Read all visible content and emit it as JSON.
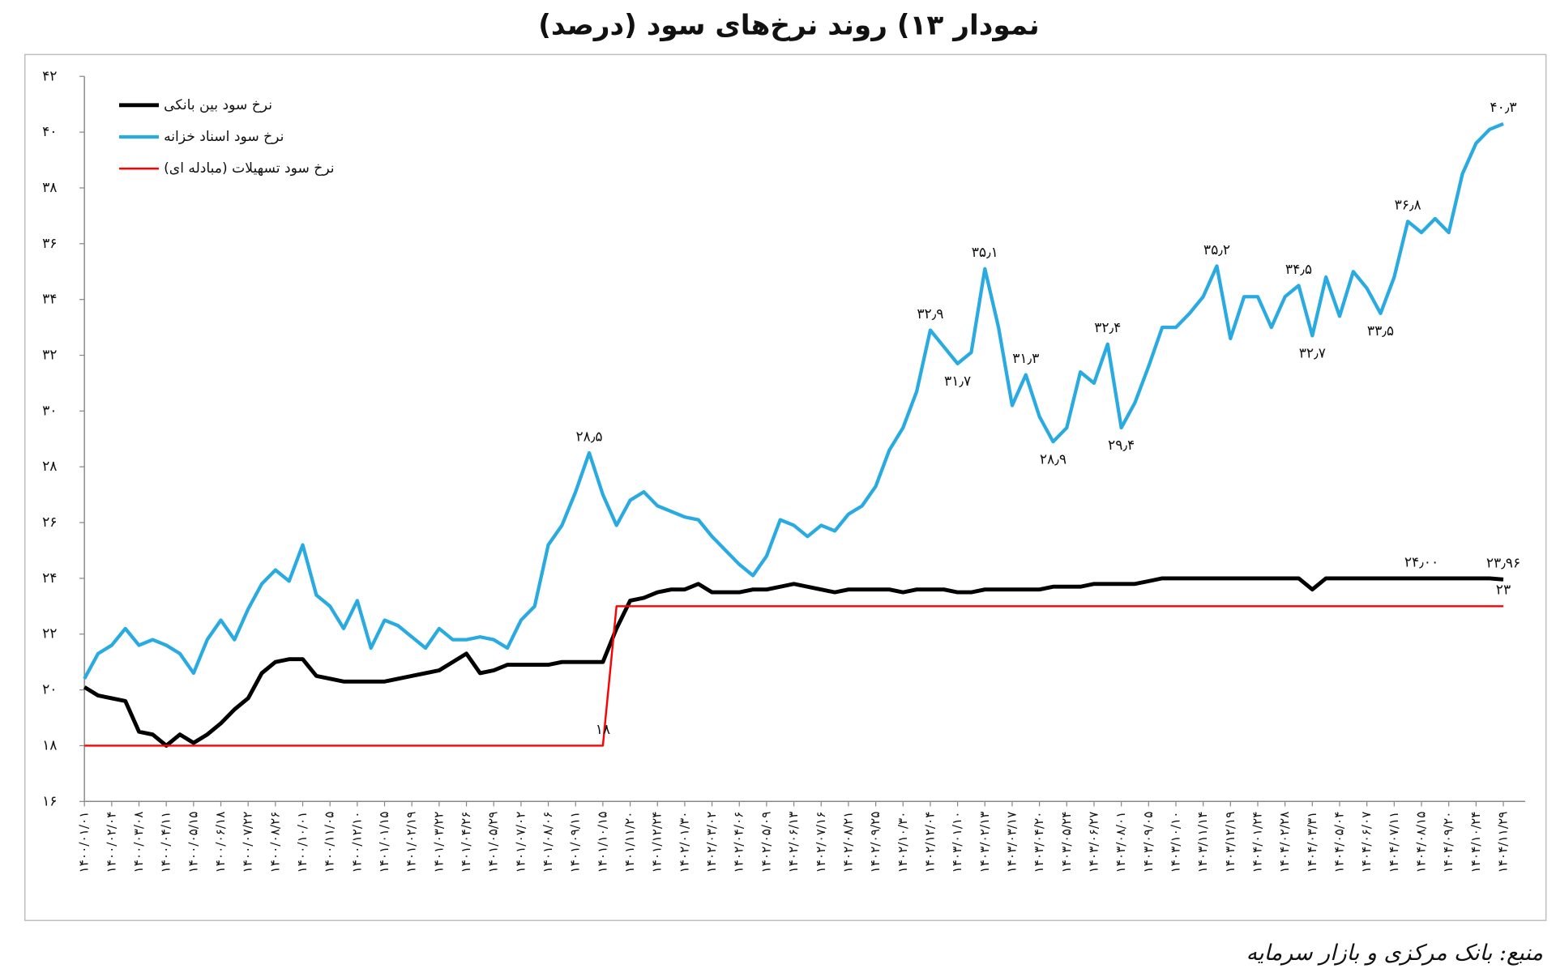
{
  "chart_data": {
    "type": "line",
    "title": "نمودار ۱۳) روند نرخ‌های سود (درصد)",
    "source": "منبع: بانک مرکزی و بازار سرمایه",
    "legend": "top-left",
    "grid": false,
    "ylim": [
      16,
      42
    ],
    "yticks": [
      {
        "value": 16,
        "label": "۱۶"
      },
      {
        "value": 18,
        "label": "۱۸"
      },
      {
        "value": 20,
        "label": "۲۰"
      },
      {
        "value": 22,
        "label": "۲۲"
      },
      {
        "value": 24,
        "label": "۲۴"
      },
      {
        "value": 26,
        "label": "۲۶"
      },
      {
        "value": 28,
        "label": "۲۸"
      },
      {
        "value": 30,
        "label": "۳۰"
      },
      {
        "value": 32,
        "label": "۳۲"
      },
      {
        "value": 34,
        "label": "۳۴"
      },
      {
        "value": 36,
        "label": "۳۶"
      },
      {
        "value": 38,
        "label": "۳۸"
      },
      {
        "value": 40,
        "label": "۴۰"
      },
      {
        "value": 42,
        "label": "۴۲"
      }
    ],
    "categories": [
      "۱۴۰۰/۰۱/۰۱",
      null,
      "۱۴۰۰/۰۲/۰۴",
      null,
      "۱۴۰۰/۰۳/۰۸",
      null,
      "۱۴۰۰/۰۴/۱۱",
      null,
      "۱۴۰۰/۰۵/۱۵",
      null,
      "۱۴۰۰/۰۶/۱۸",
      null,
      "۱۴۰۰/۰۷/۲۲",
      null,
      "۱۴۰۰/۰۸/۲۶",
      null,
      "۱۴۰۰/۱۰/۰۱",
      null,
      "۱۴۰۰/۱۱/۰۵",
      null,
      "۱۴۰۰/۱۲/۱۰",
      null,
      "۱۴۰۱/۰۱/۱۵",
      null,
      "۱۴۰۱/۰۲/۱۹",
      null,
      "۱۴۰۱/۰۳/۲۲",
      null,
      "۱۴۰۱/۰۴/۲۶",
      null,
      "۱۴۰۱/۰۵/۲۹",
      null,
      "۱۴۰۱/۰۷/۰۲",
      null,
      "۱۴۰۱/۰۸/۰۶",
      null,
      "۱۴۰۱/۰۹/۱۱",
      null,
      "۱۴۰۱/۱۰/۱۵",
      null,
      "۱۴۰۱/۱۱/۲۰",
      null,
      "۱۴۰۱/۱۲/۲۴",
      null,
      "۱۴۰۲/۰۱/۳۰",
      null,
      "۱۴۰۲/۰۳/۰۲",
      null,
      "۱۴۰۲/۰۴/۰۶",
      null,
      "۱۴۰۲/۰۵/۰۹",
      null,
      "۱۴۰۲/۰۶/۱۳",
      null,
      "۱۴۰۲/۰۷/۱۶",
      null,
      "۱۴۰۲/۰۸/۲۱",
      null,
      "۱۴۰۲/۰۹/۲۵",
      null,
      "۱۴۰۲/۱۰/۳۰",
      null,
      "۱۴۰۲/۱۲/۰۴",
      null,
      "۱۴۰۳/۰۱/۱۰",
      null,
      "۱۴۰۳/۰۲/۱۳",
      null,
      "۱۴۰۳/۰۳/۱۷",
      null,
      "۱۴۰۳/۰۴/۲۰",
      null,
      "۱۴۰۳/۰۵/۲۴",
      null,
      "۱۴۰۳/۰۶/۲۷",
      null,
      "۱۴۰۳/۰۸/۰۱",
      null,
      "۱۴۰۳/۰۹/۰۵",
      null,
      "۱۴۰۳/۱۰/۱۰",
      null,
      "۱۴۰۳/۱۱/۱۴",
      null,
      "۱۴۰۳/۱۲/۱۹",
      null,
      "۱۴۰۴/۰۱/۲۴",
      null,
      "۱۴۰۴/۰۲/۲۸",
      null,
      "۱۴۰۴/۰۳/۳۱",
      null,
      "۱۴۰۴/۰۵/۰۴",
      null,
      "۱۴۰۴/۰۶/۰۷",
      null,
      "۱۴۰۴/۰۷/۱۱",
      null,
      "۱۴۰۴/۰۸/۱۵",
      null,
      "۱۴۰۴/۰۹/۲۰",
      null,
      "۱۴۰۴/۱۰/۲۴",
      null,
      "۱۴۰۴/۱۱/۲۹"
    ],
    "series": [
      {
        "name": "نرخ سود بین بانکی",
        "color": "#000000",
        "values": [
          20.1,
          19.8,
          19.7,
          19.6,
          18.5,
          18.4,
          18.0,
          18.4,
          18.1,
          18.4,
          18.8,
          19.3,
          19.7,
          20.6,
          21.0,
          21.1,
          21.1,
          20.5,
          20.4,
          20.3,
          20.3,
          20.3,
          20.3,
          20.4,
          20.5,
          20.6,
          20.7,
          21.0,
          21.3,
          20.6,
          20.7,
          20.9,
          20.9,
          20.9,
          20.9,
          21.0,
          21.0,
          21.0,
          21.0,
          22.2,
          23.2,
          23.3,
          23.5,
          23.6,
          23.6,
          23.8,
          23.5,
          23.5,
          23.5,
          23.6,
          23.6,
          23.7,
          23.8,
          23.7,
          23.6,
          23.5,
          23.6,
          23.6,
          23.6,
          23.6,
          23.5,
          23.6,
          23.6,
          23.6,
          23.5,
          23.5,
          23.6,
          23.6,
          23.6,
          23.6,
          23.6,
          23.7,
          23.7,
          23.7,
          23.8,
          23.8,
          23.8,
          23.8,
          23.9,
          24.0,
          24.0,
          24.0,
          24.0,
          24.0,
          24.0,
          24.0,
          24.0,
          24.0,
          24.0,
          24.0,
          23.6,
          24.0,
          24.0,
          24.0,
          24.0,
          24.0,
          24.0,
          24.0,
          24.0,
          24.0,
          24.0,
          24.0,
          24.0,
          24.0,
          23.96
        ],
        "value_labels": [
          null,
          null,
          null,
          null,
          null,
          null,
          null,
          null,
          null,
          null,
          null,
          null,
          null,
          null,
          null,
          null,
          null,
          null,
          null,
          null,
          null,
          null,
          null,
          null,
          null,
          null,
          null,
          null,
          null,
          null,
          null,
          null,
          null,
          null,
          null,
          null,
          null,
          null,
          null,
          null,
          null,
          null,
          null,
          null,
          null,
          null,
          null,
          null,
          null,
          null,
          null,
          null,
          null,
          null,
          null,
          null,
          null,
          null,
          null,
          null,
          null,
          null,
          null,
          null,
          null,
          null,
          null,
          null,
          null,
          null,
          null,
          null,
          null,
          null,
          null,
          null,
          null,
          null,
          null,
          null,
          null,
          null,
          null,
          null,
          null,
          null,
          null,
          null,
          null,
          null,
          null,
          null,
          null,
          null,
          null,
          null,
          null,
          null,
          "۲۴٫۰۰",
          null,
          null,
          null,
          null,
          null,
          "۲۳٫۹۶"
        ]
      },
      {
        "name": "نرخ سود اسناد خزانه",
        "color": "#29abe2",
        "values": [
          20.4,
          21.3,
          21.6,
          22.2,
          21.6,
          21.8,
          21.6,
          21.3,
          20.6,
          21.8,
          22.5,
          21.8,
          22.9,
          23.8,
          24.3,
          23.9,
          25.2,
          23.4,
          23.0,
          22.2,
          23.2,
          21.5,
          22.5,
          22.3,
          21.9,
          21.5,
          22.2,
          21.8,
          21.8,
          21.9,
          21.8,
          21.5,
          22.5,
          23.0,
          25.2,
          25.9,
          27.1,
          28.5,
          27.0,
          25.9,
          26.8,
          27.1,
          26.6,
          26.4,
          26.2,
          26.1,
          25.5,
          25.0,
          24.5,
          24.1,
          24.8,
          26.1,
          25.9,
          25.5,
          25.9,
          25.7,
          26.3,
          26.6,
          27.3,
          28.6,
          29.4,
          30.7,
          32.9,
          32.3,
          31.7,
          32.1,
          35.1,
          33.0,
          30.2,
          31.3,
          29.8,
          28.9,
          29.4,
          31.4,
          31.0,
          32.4,
          29.4,
          30.3,
          31.6,
          33.0,
          33.0,
          33.5,
          34.1,
          35.2,
          32.6,
          34.1,
          34.1,
          33.0,
          34.1,
          34.5,
          32.7,
          34.8,
          33.4,
          35.0,
          34.4,
          33.5,
          34.8,
          36.8,
          36.4,
          36.9,
          36.4,
          38.5,
          39.6,
          40.1,
          40.3
        ],
        "value_labels": [
          null,
          null,
          null,
          null,
          null,
          null,
          null,
          null,
          null,
          null,
          null,
          null,
          null,
          null,
          null,
          null,
          null,
          null,
          null,
          null,
          null,
          null,
          null,
          null,
          null,
          null,
          null,
          null,
          null,
          null,
          null,
          null,
          null,
          null,
          null,
          null,
          null,
          "۲۸٫۵",
          null,
          null,
          null,
          null,
          null,
          null,
          null,
          null,
          null,
          null,
          null,
          null,
          null,
          null,
          null,
          null,
          null,
          null,
          null,
          null,
          null,
          null,
          null,
          null,
          "۳۲٫۹",
          null,
          "۳۱٫۷",
          null,
          "۳۵٫۱",
          null,
          null,
          "۳۱٫۳",
          null,
          "۲۸٫۹",
          null,
          null,
          null,
          "۳۲٫۴",
          "۲۹٫۴",
          null,
          null,
          null,
          null,
          null,
          null,
          "۳۵٫۲",
          null,
          null,
          null,
          null,
          null,
          "۳۴٫۵",
          "۳۲٫۷",
          null,
          null,
          null,
          null,
          "۳۳٫۵",
          null,
          "۳۶٫۸",
          null,
          null,
          null,
          null,
          null,
          null,
          "۴۰٫۳"
        ]
      },
      {
        "name": "نرخ سود تسهیلات (مبادله ای)",
        "color": "#ff0000",
        "values": [
          18,
          18,
          18,
          18,
          18,
          18,
          18,
          18,
          18,
          18,
          18,
          18,
          18,
          18,
          18,
          18,
          18,
          18,
          18,
          18,
          18,
          18,
          18,
          18,
          18,
          18,
          18,
          18,
          18,
          18,
          18,
          18,
          18,
          18,
          18,
          18,
          18,
          18,
          18,
          23,
          23,
          23,
          23,
          23,
          23,
          23,
          23,
          23,
          23,
          23,
          23,
          23,
          23,
          23,
          23,
          23,
          23,
          23,
          23,
          23,
          23,
          23,
          23,
          23,
          23,
          23,
          23,
          23,
          23,
          23,
          23,
          23,
          23,
          23,
          23,
          23,
          23,
          23,
          23,
          23,
          23,
          23,
          23,
          23,
          23,
          23,
          23,
          23,
          23,
          23,
          23,
          23,
          23,
          23,
          23,
          23,
          23,
          23,
          23,
          23,
          23,
          23,
          23,
          23,
          23
        ],
        "value_labels": [
          null,
          null,
          null,
          null,
          null,
          null,
          null,
          null,
          null,
          null,
          null,
          null,
          null,
          null,
          null,
          null,
          null,
          null,
          null,
          null,
          null,
          null,
          null,
          null,
          null,
          null,
          null,
          null,
          null,
          null,
          null,
          null,
          null,
          null,
          null,
          null,
          null,
          null,
          "۱۸",
          null,
          null,
          null,
          null,
          null,
          null,
          null,
          null,
          null,
          null,
          null,
          null,
          null,
          null,
          null,
          null,
          null,
          null,
          null,
          null,
          null,
          null,
          null,
          null,
          null,
          null,
          null,
          null,
          null,
          null,
          null,
          null,
          null,
          null,
          null,
          null,
          null,
          null,
          null,
          null,
          null,
          null,
          null,
          null,
          null,
          null,
          null,
          null,
          null,
          null,
          null,
          null,
          null,
          null,
          null,
          null,
          null,
          null,
          null,
          null,
          null,
          null,
          null,
          null,
          null,
          "۲۳"
        ]
      }
    ]
  }
}
